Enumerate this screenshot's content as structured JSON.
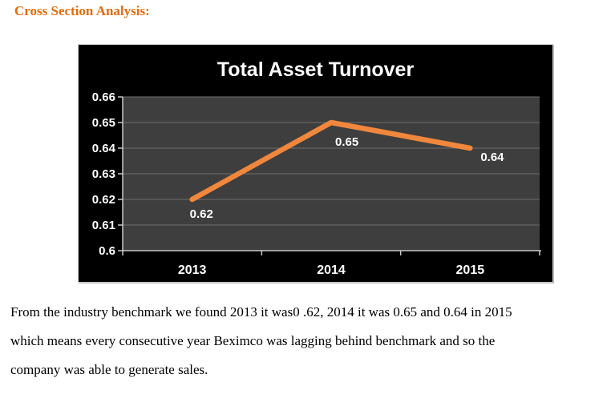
{
  "page": {
    "heading": "Cross Section Analysis:",
    "paragraph_lines": [
      "From the industry benchmark we found 2013 it was0 .62, 2014 it was 0.65 and 0.64 in 2015",
      "which means every consecutive year Beximco was lagging behind benchmark and so the",
      "company was able to generate sales."
    ]
  },
  "chart_data": {
    "type": "line",
    "title": "Total Asset Turnover",
    "categories": [
      "2013",
      "2014",
      "2015"
    ],
    "series": [
      {
        "name": "Total Asset Turnover",
        "values": [
          0.62,
          0.65,
          0.64
        ]
      }
    ],
    "data_labels": [
      "0.62",
      "0.65",
      "0.64"
    ],
    "xlabel": "",
    "ylabel": "",
    "ylim": [
      0.6,
      0.66
    ],
    "ytick_step": 0.01,
    "grid": true,
    "legend_position": "none",
    "colors": {
      "chart_background": "#000000",
      "plot_background": "#3E3E3E",
      "gridline": "#6F6F6F",
      "axis": "#C8C8C8",
      "line": "#F0873C",
      "tick_label": "#FFFFFF",
      "data_label": "#FFFFFF",
      "title": "#FFFFFF"
    }
  }
}
